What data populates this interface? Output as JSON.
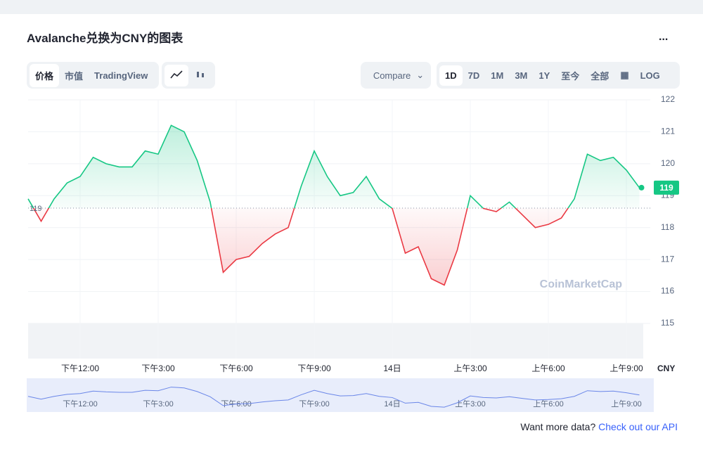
{
  "header": {
    "title": "Avalanche兑换为CNY的图表",
    "menu": "..."
  },
  "toolbar": {
    "tabs": [
      "价格",
      "市值",
      "TradingView"
    ],
    "compare": "Compare",
    "ranges": [
      "1D",
      "7D",
      "1M",
      "3M",
      "1Y",
      "至今",
      "全部"
    ],
    "log": "LOG"
  },
  "chart_data": {
    "type": "line",
    "categories": [
      null,
      null,
      null,
      null,
      "下午12:00",
      null,
      null,
      null,
      null,
      null,
      "下午3:00",
      null,
      null,
      null,
      null,
      null,
      "下午6:00",
      null,
      null,
      null,
      null,
      null,
      "下午9:00",
      null,
      null,
      null,
      null,
      null,
      "14日",
      null,
      null,
      null,
      null,
      null,
      "上午3:00",
      null,
      null,
      null,
      null,
      null,
      "上午6:00",
      null,
      null,
      null,
      null,
      null,
      "上午9:00",
      null
    ],
    "series": [
      {
        "name": "CNY",
        "values": [
          118.9,
          118.2,
          118.9,
          119.4,
          119.6,
          120.2,
          120.0,
          119.9,
          119.9,
          120.4,
          120.3,
          121.2,
          121.0,
          120.1,
          118.8,
          116.6,
          117.0,
          117.1,
          117.5,
          117.8,
          118.0,
          119.3,
          120.4,
          119.6,
          119.0,
          119.1,
          119.6,
          118.9,
          118.6,
          117.2,
          117.4,
          116.4,
          116.2,
          117.3,
          119.0,
          118.6,
          118.5,
          118.8,
          118.4,
          118.0,
          118.1,
          118.3,
          118.9,
          120.3,
          120.1,
          120.2,
          119.8,
          119.25
        ]
      }
    ],
    "up_color": "#16c784",
    "down_color": "#ea3943",
    "baseline": {
      "value": 118.61,
      "label": "119"
    },
    "current": {
      "value": 119.25,
      "label": "119"
    },
    "ylim": [
      115,
      122
    ],
    "yticks": [
      115,
      116,
      117,
      118,
      119,
      120,
      121,
      122
    ],
    "grid": true,
    "watermark": "CoinMarketCap"
  },
  "footer": {
    "text": "Want more data?",
    "link": "Check out our API"
  }
}
